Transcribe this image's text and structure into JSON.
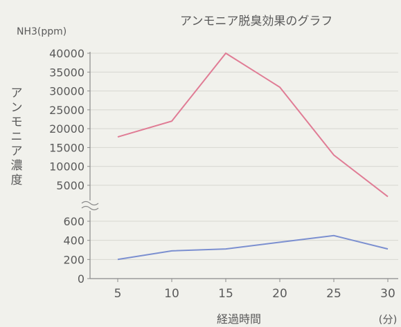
{
  "chart_data": {
    "type": "line",
    "title": "アンモニア脱臭効果のグラフ",
    "unit_label": "NH3(ppm)",
    "ylabel": "アンモニア濃度",
    "xlabel": "経過時間",
    "x_unit": "(分)",
    "x": [
      5,
      10,
      15,
      20,
      25,
      30
    ],
    "x_ticks": [
      "5",
      "10",
      "15",
      "20",
      "25",
      "30"
    ],
    "y_axis_break": true,
    "upper_panel": {
      "ylim": [
        5000,
        40000
      ],
      "ticks": [
        "40000",
        "35000",
        "30000",
        "25000",
        "20000",
        "15000",
        "10000",
        "5000"
      ]
    },
    "lower_panel": {
      "ylim": [
        0,
        600
      ],
      "ticks": [
        "600",
        "400",
        "200",
        "0"
      ]
    },
    "series": [
      {
        "values": [
          17800,
          22000,
          40000,
          31000,
          13000,
          2000
        ],
        "color": "#e07c95",
        "panel": "upper"
      },
      {
        "values": [
          200,
          290,
          310,
          380,
          450,
          310
        ],
        "color": "#7b8fd0",
        "panel": "lower"
      }
    ],
    "grid": true
  }
}
